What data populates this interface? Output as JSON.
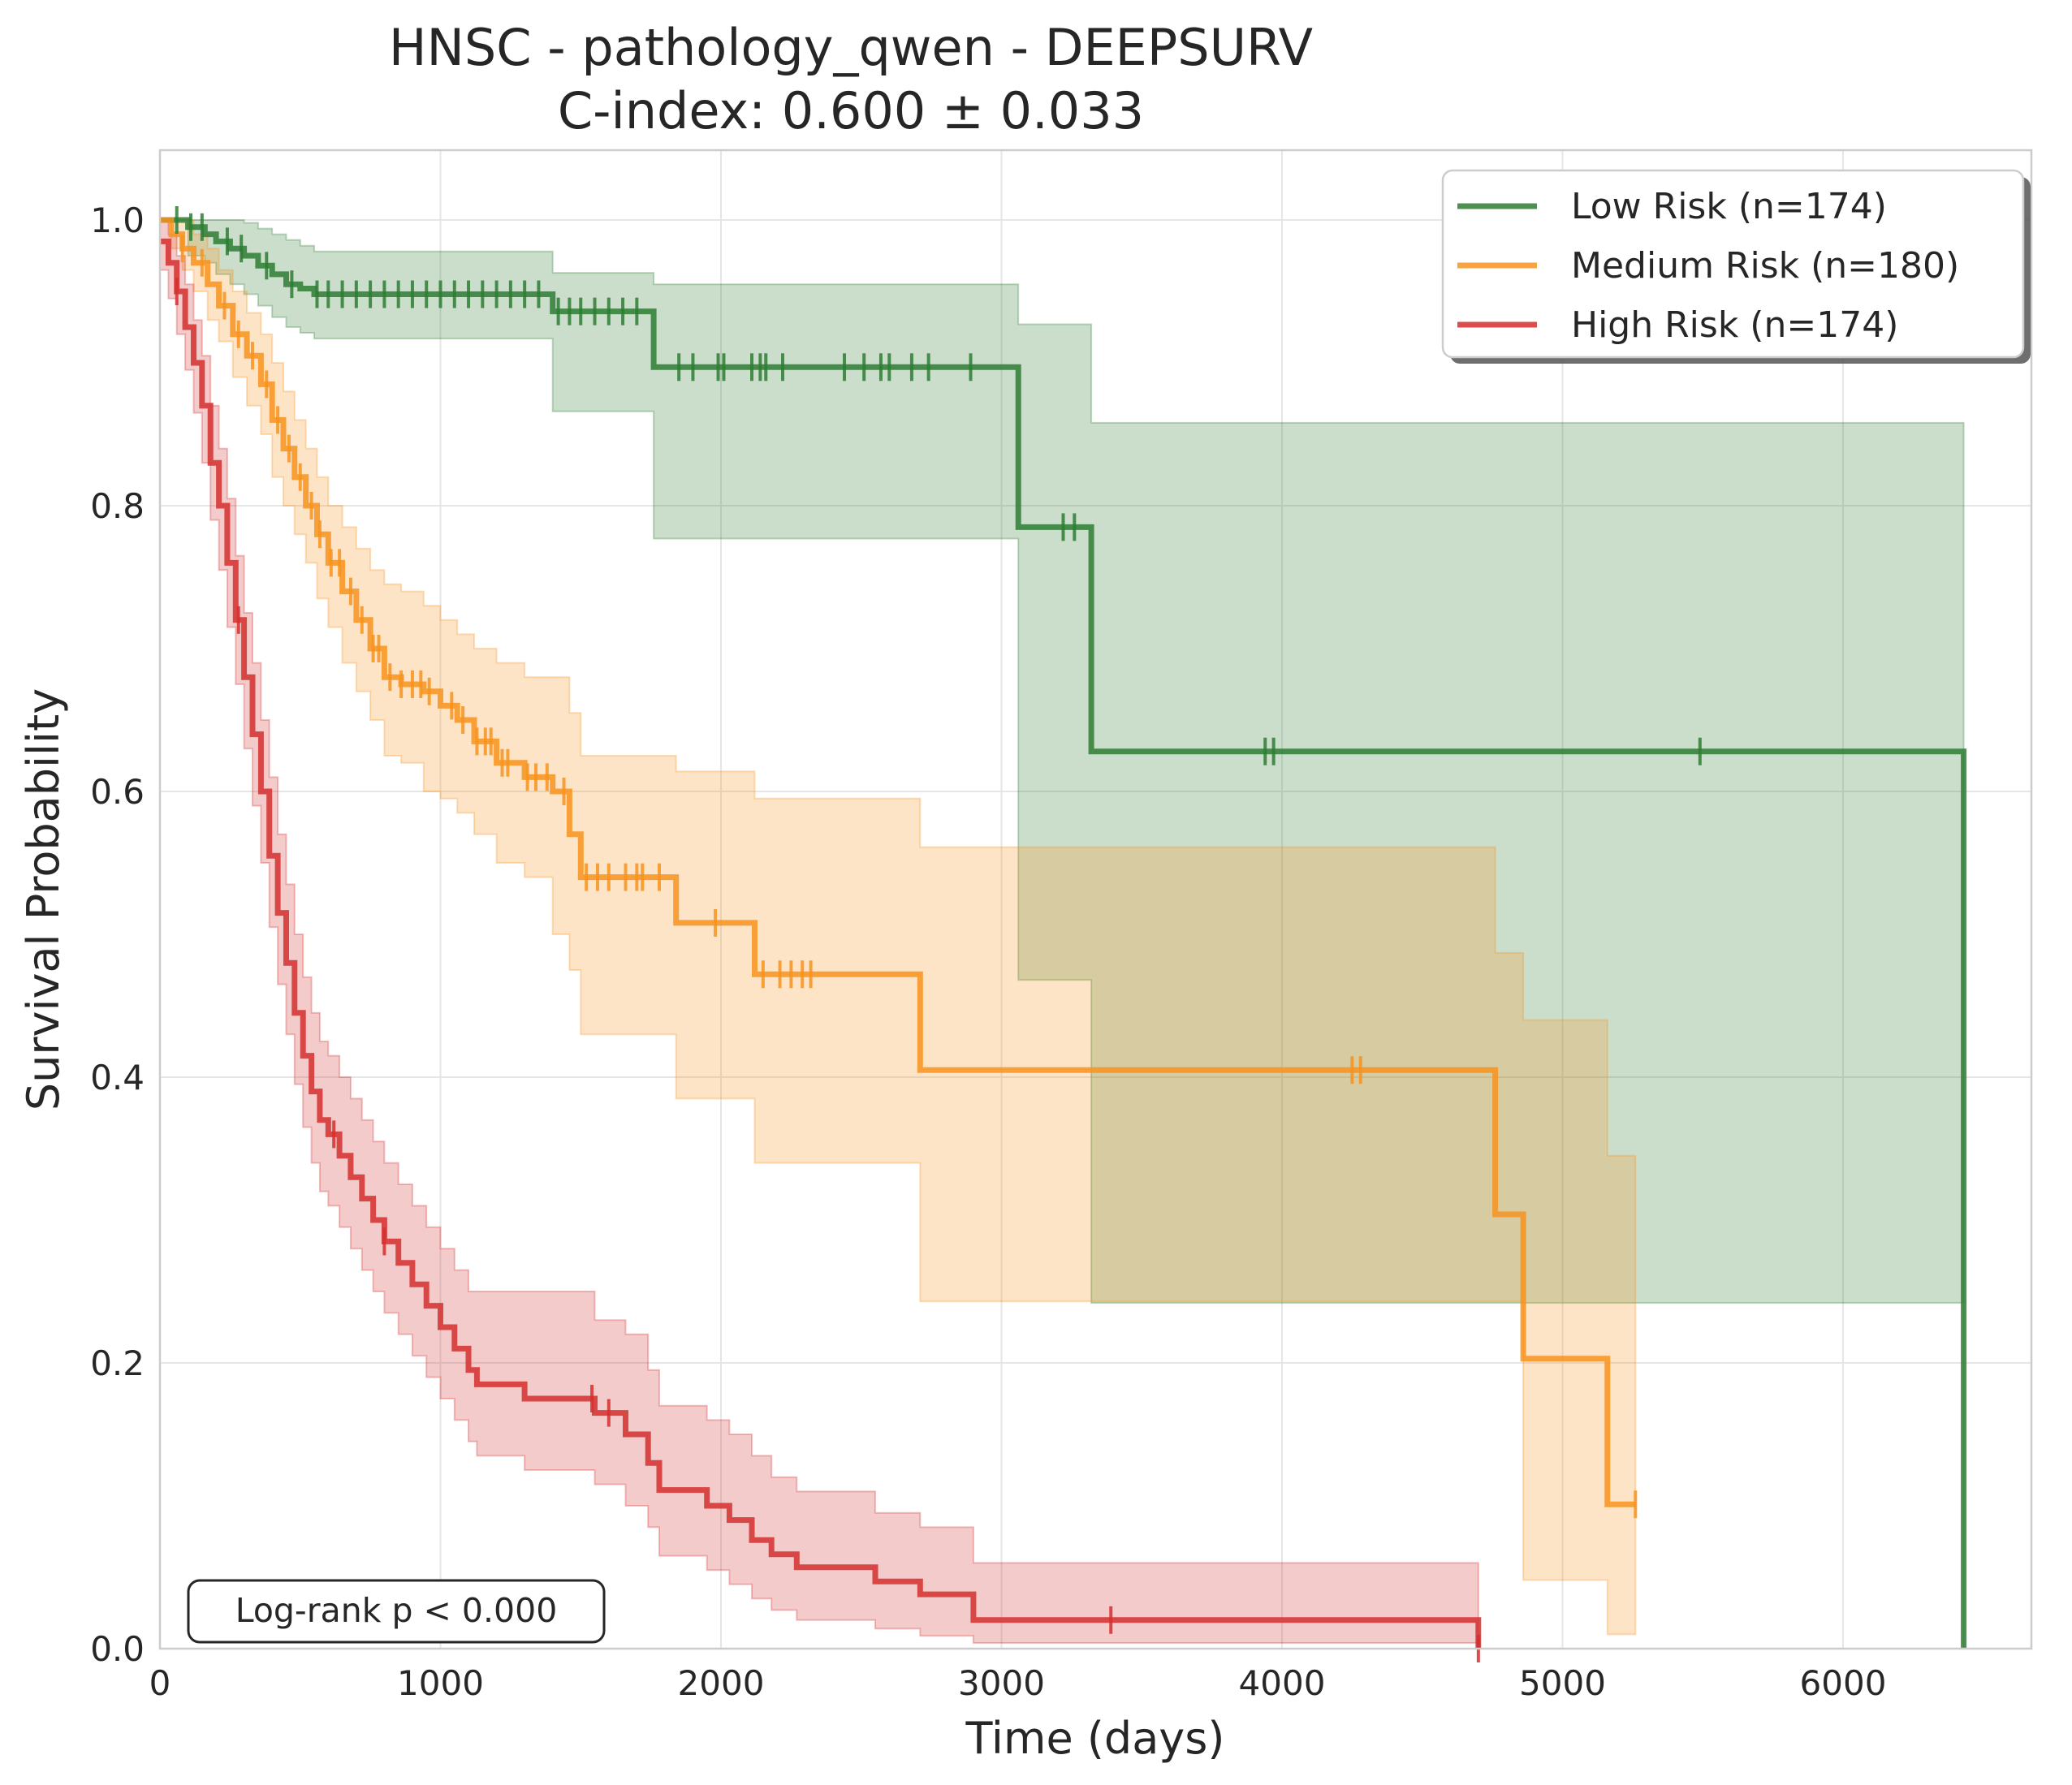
{
  "chart_data": {
    "type": "line",
    "title_line1": "HNSC - pathology_qwen - DEEPSURV",
    "title_line2": "C-index: 0.600 ± 0.033",
    "xlabel": "Time (days)",
    "ylabel": "Survival Probability",
    "xlim": [
      0,
      6700
    ],
    "ylim": [
      0,
      1.05
    ],
    "xticks": [
      0,
      1000,
      2000,
      3000,
      4000,
      5000,
      6000
    ],
    "xtick_labels": [
      "0",
      "1000",
      "2000",
      "3000",
      "4000",
      "5000",
      "6000"
    ],
    "yticks": [
      0.0,
      0.2,
      0.4,
      0.6,
      0.8,
      1.0
    ],
    "ytick_labels": [
      "0.0",
      "0.2",
      "0.4",
      "0.6",
      "0.8",
      "1.0"
    ],
    "grid": true,
    "legend_position": "top-right",
    "annotation": "Log-rank p < 0.000",
    "series": [
      {
        "name": "Low Risk (n=174)",
        "color": "#2e7d32",
        "x": [
          0,
          100,
          160,
          200,
          250,
          300,
          350,
          400,
          450,
          500,
          550,
          1400,
          1760,
          3060,
          3320,
          6430
        ],
        "y": [
          1.0,
          0.995,
          0.99,
          0.985,
          0.98,
          0.975,
          0.968,
          0.962,
          0.955,
          0.952,
          0.948,
          0.936,
          0.897,
          0.785,
          0.628,
          0.0
        ],
        "ci_lower": [
          1.0,
          0.975,
          0.97,
          0.962,
          0.955,
          0.948,
          0.94,
          0.932,
          0.925,
          0.921,
          0.917,
          0.866,
          0.777,
          0.468,
          0.242,
          0.0
        ],
        "ci_upper": [
          1.0,
          1.0,
          1.0,
          1.0,
          1.0,
          0.998,
          0.994,
          0.99,
          0.986,
          0.982,
          0.978,
          0.963,
          0.955,
          0.927,
          0.858,
          0.858
        ],
        "censor_x": [
          60,
          110,
          150,
          240,
          290,
          380,
          470,
          560,
          600,
          650,
          700,
          750,
          800,
          850,
          900,
          950,
          1000,
          1050,
          1100,
          1150,
          1200,
          1250,
          1300,
          1350,
          1420,
          1460,
          1500,
          1550,
          1600,
          1650,
          1700,
          1850,
          1900,
          1990,
          2010,
          2110,
          2140,
          2160,
          2220,
          2440,
          2510,
          2570,
          2600,
          2680,
          2740,
          2890,
          3220,
          3260,
          3940,
          3970,
          5490
        ]
      },
      {
        "name": "Medium Risk (n=180)",
        "color": "#f7931e",
        "x": [
          0,
          40,
          80,
          120,
          170,
          210,
          260,
          310,
          360,
          400,
          440,
          480,
          520,
          560,
          600,
          650,
          700,
          750,
          800,
          860,
          940,
          1000,
          1060,
          1120,
          1200,
          1300,
          1400,
          1460,
          1500,
          1550,
          1840,
          2120,
          2710,
          4760,
          4860,
          5160,
          5260
        ],
        "y": [
          1.0,
          0.99,
          0.98,
          0.97,
          0.955,
          0.94,
          0.92,
          0.905,
          0.885,
          0.86,
          0.84,
          0.82,
          0.8,
          0.78,
          0.76,
          0.74,
          0.72,
          0.7,
          0.68,
          0.675,
          0.67,
          0.66,
          0.65,
          0.635,
          0.62,
          0.61,
          0.6,
          0.57,
          0.54,
          0.54,
          0.508,
          0.472,
          0.405,
          0.304,
          0.203,
          0.101,
          0.101
        ],
        "ci_lower": [
          1.0,
          0.98,
          0.965,
          0.95,
          0.93,
          0.915,
          0.89,
          0.87,
          0.85,
          0.82,
          0.8,
          0.78,
          0.76,
          0.735,
          0.715,
          0.69,
          0.67,
          0.65,
          0.625,
          0.62,
          0.6,
          0.595,
          0.585,
          0.57,
          0.55,
          0.54,
          0.5,
          0.475,
          0.43,
          0.43,
          0.385,
          0.34,
          0.243,
          0.243,
          0.048,
          0.01,
          0.01
        ],
        "ci_upper": [
          1.0,
          1.0,
          1.0,
          0.99,
          0.98,
          0.965,
          0.95,
          0.935,
          0.92,
          0.9,
          0.88,
          0.86,
          0.84,
          0.82,
          0.8,
          0.785,
          0.77,
          0.755,
          0.745,
          0.74,
          0.73,
          0.72,
          0.71,
          0.7,
          0.69,
          0.68,
          0.68,
          0.655,
          0.625,
          0.625,
          0.614,
          0.595,
          0.561,
          0.487,
          0.44,
          0.345,
          0.345
        ],
        "censor_x": [
          80,
          150,
          230,
          280,
          330,
          380,
          420,
          460,
          500,
          540,
          570,
          610,
          640,
          680,
          720,
          760,
          780,
          820,
          860,
          900,
          930,
          960,
          1040,
          1080,
          1130,
          1160,
          1180,
          1220,
          1240,
          1310,
          1340,
          1380,
          1440,
          1520,
          1560,
          1600,
          1660,
          1700,
          1720,
          1780,
          1980,
          2150,
          2210,
          2250,
          2290,
          2320,
          4250,
          4280,
          5260
        ]
      },
      {
        "name": "High Risk (n=174)",
        "color": "#d32f2f",
        "x": [
          0,
          30,
          60,
          90,
          120,
          150,
          180,
          210,
          240,
          270,
          300,
          330,
          360,
          390,
          420,
          450,
          480,
          510,
          540,
          570,
          600,
          640,
          680,
          720,
          760,
          800,
          850,
          900,
          950,
          1000,
          1050,
          1100,
          1130,
          1300,
          1550,
          1660,
          1740,
          1780,
          1950,
          2030,
          2110,
          2180,
          2270,
          2550,
          2710,
          2900,
          3390,
          4700
        ],
        "y": [
          0.985,
          0.97,
          0.95,
          0.925,
          0.9,
          0.87,
          0.83,
          0.8,
          0.76,
          0.72,
          0.68,
          0.64,
          0.6,
          0.555,
          0.515,
          0.48,
          0.445,
          0.415,
          0.39,
          0.37,
          0.36,
          0.345,
          0.33,
          0.315,
          0.3,
          0.285,
          0.27,
          0.255,
          0.24,
          0.225,
          0.21,
          0.195,
          0.185,
          0.175,
          0.165,
          0.15,
          0.13,
          0.111,
          0.1,
          0.09,
          0.076,
          0.066,
          0.057,
          0.047,
          0.038,
          0.02,
          0.02,
          0.0
        ],
        "ci_lower": [
          0.965,
          0.945,
          0.92,
          0.895,
          0.865,
          0.83,
          0.79,
          0.755,
          0.715,
          0.675,
          0.63,
          0.59,
          0.55,
          0.505,
          0.465,
          0.43,
          0.395,
          0.365,
          0.34,
          0.32,
          0.31,
          0.295,
          0.28,
          0.265,
          0.25,
          0.235,
          0.22,
          0.205,
          0.19,
          0.175,
          0.16,
          0.145,
          0.135,
          0.125,
          0.115,
          0.1,
          0.085,
          0.065,
          0.055,
          0.045,
          0.035,
          0.027,
          0.02,
          0.014,
          0.009,
          0.004,
          0.004,
          0.0
        ],
        "ci_upper": [
          1.0,
          0.99,
          0.975,
          0.955,
          0.93,
          0.905,
          0.87,
          0.84,
          0.805,
          0.765,
          0.725,
          0.69,
          0.65,
          0.61,
          0.57,
          0.535,
          0.5,
          0.47,
          0.445,
          0.425,
          0.415,
          0.4,
          0.385,
          0.37,
          0.355,
          0.34,
          0.325,
          0.31,
          0.295,
          0.28,
          0.265,
          0.25,
          0.25,
          0.25,
          0.23,
          0.22,
          0.195,
          0.17,
          0.16,
          0.15,
          0.135,
          0.12,
          0.11,
          0.095,
          0.085,
          0.06,
          0.06,
          0.06
        ],
        "censor_x": [
          60,
          280,
          620,
          800,
          1540,
          1600,
          3390,
          4700
        ]
      }
    ]
  }
}
